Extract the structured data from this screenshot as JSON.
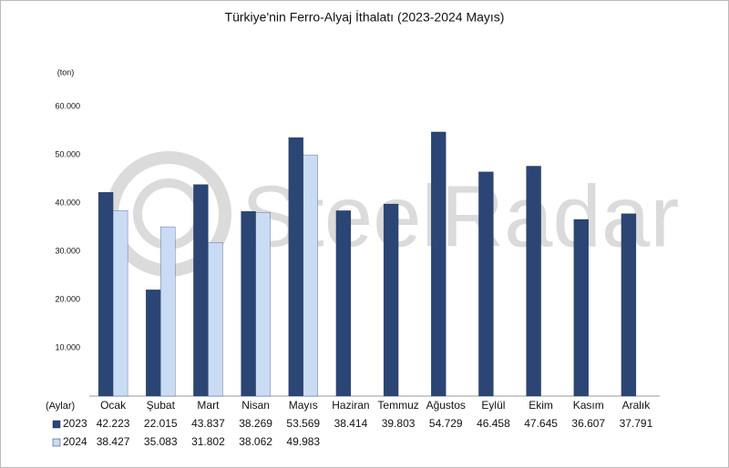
{
  "chart_data": {
    "type": "bar",
    "title": "Türkiye'nin Ferro-Alyaj İthalatı (2023-2024 Mayıs)",
    "y_label": "(ton)",
    "x_label": "(Aylar)",
    "watermark": "SteelRadar",
    "categories": [
      "Ocak",
      "Şubat",
      "Mart",
      "Nisan",
      "Mayıs",
      "Haziran",
      "Temmuz",
      "Ağustos",
      "Eylül",
      "Ekim",
      "Kasım",
      "Aralık"
    ],
    "series": [
      {
        "name": "2023",
        "color": "#2b4574",
        "values": [
          42223,
          22015,
          43837,
          38269,
          53569,
          38414,
          39803,
          54729,
          46458,
          47645,
          36607,
          37791
        ],
        "value_labels": [
          "42.223",
          "22.015",
          "43.837",
          "38.269",
          "53.569",
          "38.414",
          "39.803",
          "54.729",
          "46.458",
          "47.645",
          "36.607",
          "37.791"
        ]
      },
      {
        "name": "2024",
        "color": "#c9dcf4",
        "values": [
          38427,
          35083,
          31802,
          38062,
          49983,
          null,
          null,
          null,
          null,
          null,
          null,
          null
        ],
        "value_labels": [
          "38.427",
          "35.083",
          "31.802",
          "38.062",
          "49.983",
          null,
          null,
          null,
          null,
          null,
          null,
          null
        ]
      }
    ],
    "ylim": [
      0,
      60000
    ],
    "yticks": [
      {
        "value": 10000,
        "label": "10.000"
      },
      {
        "value": 20000,
        "label": "20.000"
      },
      {
        "value": 30000,
        "label": "30.000"
      },
      {
        "value": 40000,
        "label": "40.000"
      },
      {
        "value": 50000,
        "label": "50.000"
      },
      {
        "value": 60000,
        "label": "60.000"
      }
    ],
    "grid": false
  }
}
